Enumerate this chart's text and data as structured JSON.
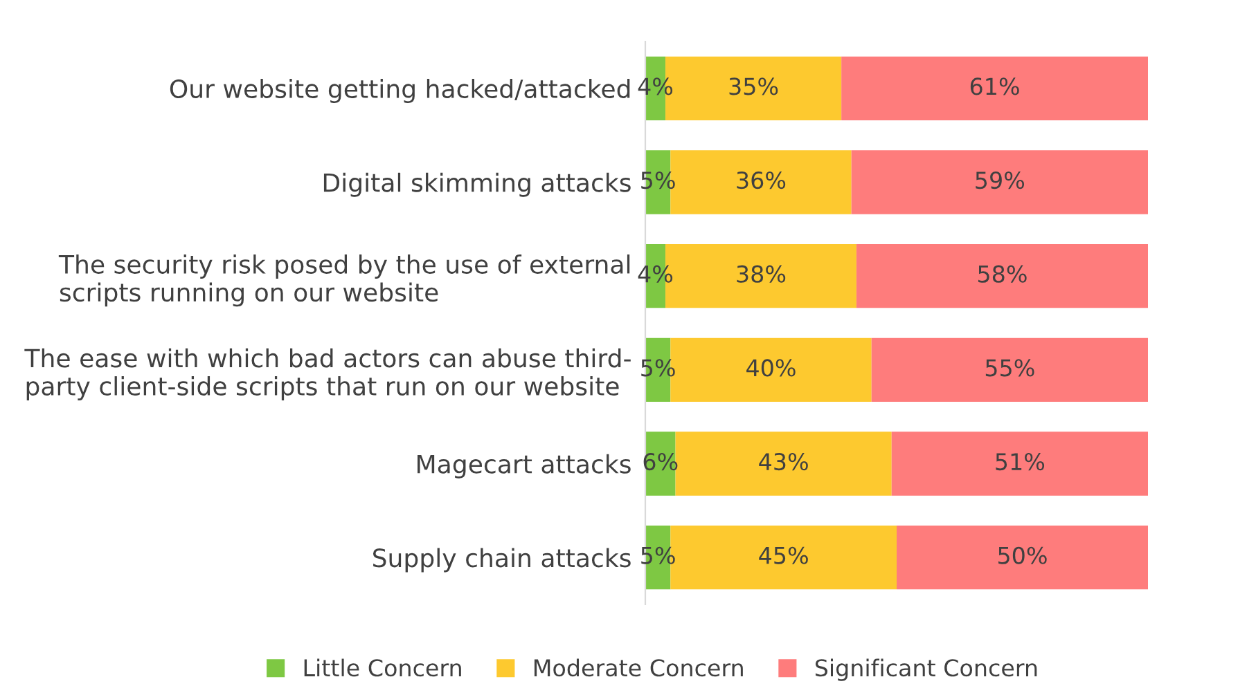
{
  "chart_data": {
    "type": "bar",
    "orientation": "horizontal",
    "stacked": true,
    "categories": [
      "Our website getting hacked/attacked",
      "Digital skimming attacks",
      "The security risk posed by the use of external\nscripts running on our website",
      "The ease with which bad actors can abuse third-\nparty client-side scripts that run on our website",
      "Magecart attacks",
      "Supply chain attacks"
    ],
    "series": [
      {
        "name": "Little Concern",
        "color": "#7ec843",
        "values": [
          4,
          5,
          4,
          5,
          6,
          5
        ],
        "value_labels": [
          "4%",
          "5%",
          "4%",
          "5%",
          "6%",
          "5%"
        ]
      },
      {
        "name": "Moderate Concern",
        "color": "#fdc92f",
        "values": [
          35,
          36,
          38,
          40,
          43,
          45
        ],
        "value_labels": [
          "35%",
          "36%",
          "38%",
          "40%",
          "43%",
          "45%"
        ]
      },
      {
        "name": "Significant Concern",
        "color": "#fe7c7c",
        "values": [
          61,
          59,
          58,
          55,
          51,
          50
        ],
        "value_labels": [
          "61%",
          "59%",
          "58%",
          "55%",
          "51%",
          "50%"
        ]
      }
    ],
    "xlim": [
      0,
      100
    ],
    "tick_labels": "y",
    "legend": "bottom",
    "grid": false
  }
}
